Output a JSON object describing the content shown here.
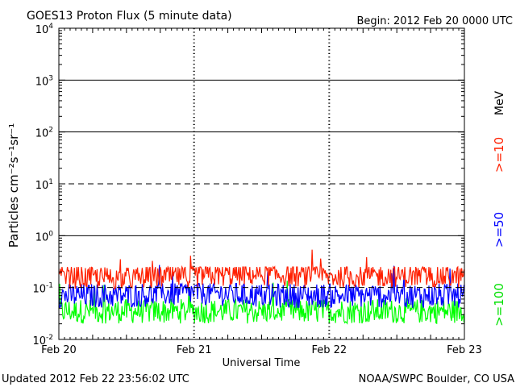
{
  "chart_data": {
    "type": "line",
    "title": "GOES13 Proton Flux (5 minute data)",
    "begin_label": "Begin: 2012 Feb 20 0000 UTC",
    "ylabel": "Particles cm⁻²s⁻¹sr⁻¹",
    "xlabel": "Universal Time",
    "y_scale": "log",
    "ylim": [
      0.01,
      10000
    ],
    "y_ticks": [
      {
        "value": 10000,
        "base": "10",
        "exp": "4"
      },
      {
        "value": 1000,
        "base": "10",
        "exp": "3"
      },
      {
        "value": 100,
        "base": "10",
        "exp": "2"
      },
      {
        "value": 10,
        "base": "10",
        "exp": "1"
      },
      {
        "value": 1,
        "base": "10",
        "exp": "0"
      },
      {
        "value": 0.1,
        "base": "10",
        "exp": "-1"
      },
      {
        "value": 0.01,
        "base": "10",
        "exp": "-2"
      }
    ],
    "x_ticks": [
      "Feb 20",
      "Feb 21",
      "Feb 22",
      "Feb 23"
    ],
    "xlim": [
      "2012-02-20",
      "2012-02-23"
    ],
    "data_end": "2012-02-22 23:56",
    "reference_lines": [
      {
        "value": 1000,
        "style": "solid"
      },
      {
        "value": 100,
        "style": "solid"
      },
      {
        "value": 10,
        "style": "dashed"
      },
      {
        "value": 1,
        "style": "solid"
      },
      {
        "value": 0.1,
        "style": "dashed"
      }
    ],
    "unit_label": "MeV",
    "series": [
      {
        "name": ">=10",
        "color": "#ff2000",
        "typical_range": [
          0.09,
          0.25
        ],
        "x": [
          "2012-02-20 00:00",
          "2012-02-20 12:00",
          "2012-02-21 00:00",
          "2012-02-21 12:00",
          "2012-02-22 00:00",
          "2012-02-22 12:00",
          "2012-02-22 23:56"
        ],
        "values": [
          0.16,
          0.15,
          0.17,
          0.18,
          0.16,
          0.17,
          0.16
        ]
      },
      {
        "name": ">=50",
        "color": "#0000ff",
        "typical_range": [
          0.04,
          0.12
        ],
        "x": [
          "2012-02-20 00:00",
          "2012-02-20 12:00",
          "2012-02-21 00:00",
          "2012-02-21 12:00",
          "2012-02-22 00:00",
          "2012-02-22 12:00",
          "2012-02-22 23:56"
        ],
        "values": [
          0.07,
          0.07,
          0.08,
          0.07,
          0.07,
          0.07,
          0.07
        ]
      },
      {
        "name": ">=100",
        "color": "#00ff00",
        "typical_range": [
          0.02,
          0.06
        ],
        "x": [
          "2012-02-20 00:00",
          "2012-02-20 12:00",
          "2012-02-21 00:00",
          "2012-02-21 12:00",
          "2012-02-22 00:00",
          "2012-02-22 12:00",
          "2012-02-22 23:56"
        ],
        "values": [
          0.035,
          0.035,
          0.035,
          0.035,
          0.035,
          0.035,
          0.035
        ]
      }
    ],
    "footer_left": "Updated 2012 Feb 22 23:56:02 UTC",
    "footer_right": "NOAA/SWPC Boulder, CO USA"
  }
}
